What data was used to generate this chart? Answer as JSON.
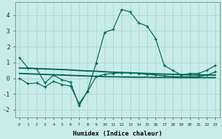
{
  "xlabel": "Humidex (Indice chaleur)",
  "background_color": "#c8ece8",
  "grid_color": "#b0d8d0",
  "line_color": "#006655",
  "x": [
    0,
    1,
    2,
    3,
    4,
    5,
    6,
    7,
    8,
    9,
    10,
    11,
    12,
    13,
    14,
    15,
    16,
    17,
    18,
    19,
    20,
    21,
    22,
    23
  ],
  "curve_main": [
    1.3,
    0.65,
    0.6,
    -0.3,
    0.2,
    -0.1,
    -0.25,
    -1.75,
    -0.8,
    0.95,
    2.9,
    3.1,
    4.35,
    4.2,
    3.5,
    3.3,
    2.5,
    0.8,
    0.5,
    0.2,
    0.3,
    0.3,
    0.5,
    0.8
  ],
  "curve_low": [
    0.0,
    -0.35,
    -0.3,
    -0.55,
    -0.2,
    -0.4,
    -0.5,
    -1.6,
    -0.85,
    0.1,
    0.25,
    0.3,
    0.35,
    0.35,
    0.3,
    0.25,
    0.2,
    0.15,
    0.1,
    0.1,
    0.1,
    0.1,
    0.2,
    0.4
  ],
  "trend_upper": [
    0.65,
    0.63,
    0.61,
    0.59,
    0.57,
    0.55,
    0.52,
    0.49,
    0.46,
    0.44,
    0.41,
    0.38,
    0.36,
    0.34,
    0.32,
    0.3,
    0.28,
    0.26,
    0.25,
    0.23,
    0.22,
    0.21,
    0.21,
    0.2
  ],
  "trend_lower": [
    0.3,
    0.28,
    0.26,
    0.24,
    0.22,
    0.2,
    0.18,
    0.16,
    0.14,
    0.12,
    0.1,
    0.09,
    0.08,
    0.07,
    0.06,
    0.06,
    0.05,
    0.05,
    0.05,
    0.04,
    0.04,
    0.04,
    0.04,
    0.04
  ],
  "ylim": [
    -2.5,
    4.8
  ],
  "yticks": [
    -2,
    -1,
    0,
    1,
    2,
    3,
    4
  ],
  "xticks": [
    0,
    1,
    2,
    3,
    4,
    5,
    6,
    7,
    8,
    9,
    10,
    11,
    12,
    13,
    14,
    15,
    16,
    17,
    18,
    19,
    20,
    21,
    22,
    23
  ]
}
